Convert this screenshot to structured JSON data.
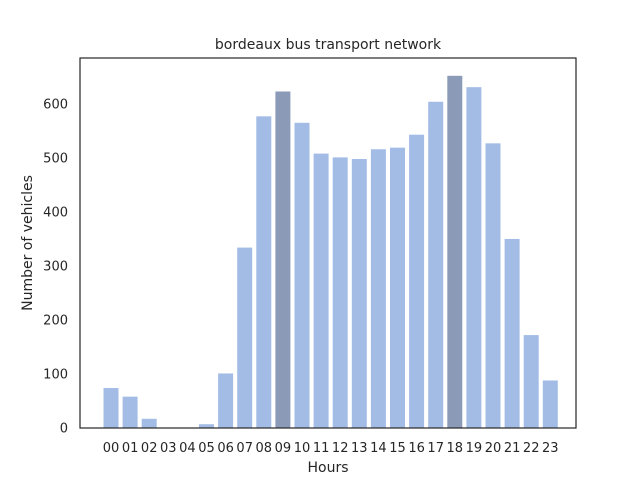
{
  "chart_data": {
    "type": "bar",
    "title": "bordeaux bus transport network",
    "xlabel": "Hours",
    "ylabel": "Number of vehicles",
    "categories": [
      "00",
      "01",
      "02",
      "03",
      "04",
      "05",
      "06",
      "07",
      "08",
      "09",
      "10",
      "11",
      "12",
      "13",
      "14",
      "15",
      "16",
      "17",
      "18",
      "19",
      "20",
      "21",
      "22",
      "23"
    ],
    "values": [
      74,
      58,
      17,
      0,
      0,
      7,
      101,
      334,
      577,
      623,
      565,
      508,
      501,
      498,
      516,
      519,
      543,
      604,
      652,
      631,
      527,
      350,
      172,
      88
    ],
    "highlighted": [
      "09",
      "18"
    ],
    "ylim": [
      0,
      685
    ],
    "yticks": [
      0,
      100,
      200,
      300,
      400,
      500,
      600
    ],
    "grid": false,
    "colors": {
      "bar": "#a3bce6",
      "bar_highlight": "#8b9bb7",
      "axis": "#262626"
    }
  }
}
